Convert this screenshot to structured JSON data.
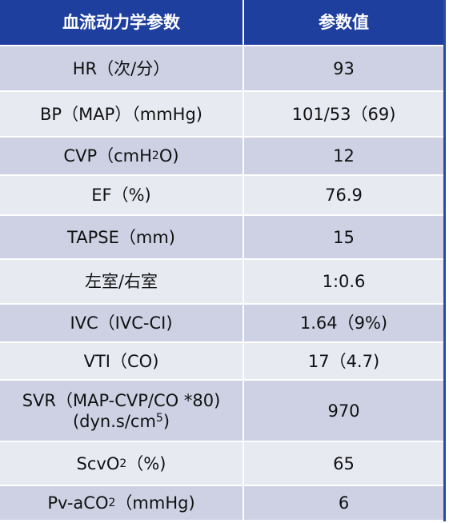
{
  "header": {
    "param": "血流动力学参数",
    "value": "参数值"
  },
  "rows": [
    {
      "param": "HR（次/分）",
      "value": "93"
    },
    {
      "param": "BP（MAP）（mmHg)",
      "value": "101/53（69)"
    },
    {
      "param_pre": "CVP（cmH",
      "param_sub": "2",
      "param_post": "O)",
      "value": "12"
    },
    {
      "param": "EF（%)",
      "value": "76.9"
    },
    {
      "param": "TAPSE（mm)",
      "value": "15"
    },
    {
      "param": "左室/右室",
      "value": "1:0.6"
    },
    {
      "param": "IVC（IVC-CI)",
      "value": "1.64（9%)"
    },
    {
      "param": "VTI（CO)",
      "value": "17（4.7)"
    },
    {
      "param_line1": "SVR（MAP-CVP/CO *80)",
      "param_line2_pre": "(dyn.s/cm",
      "param_line2_sup": "5",
      "param_line2_post": ")",
      "value": "970"
    },
    {
      "param_pre": "ScvO",
      "param_sub": "2",
      "param_post": "（%)",
      "value": "65"
    },
    {
      "param_pre": "Pv-aCO",
      "param_sub": "2",
      "param_post": "（mmHg)",
      "value": "6"
    }
  ]
}
